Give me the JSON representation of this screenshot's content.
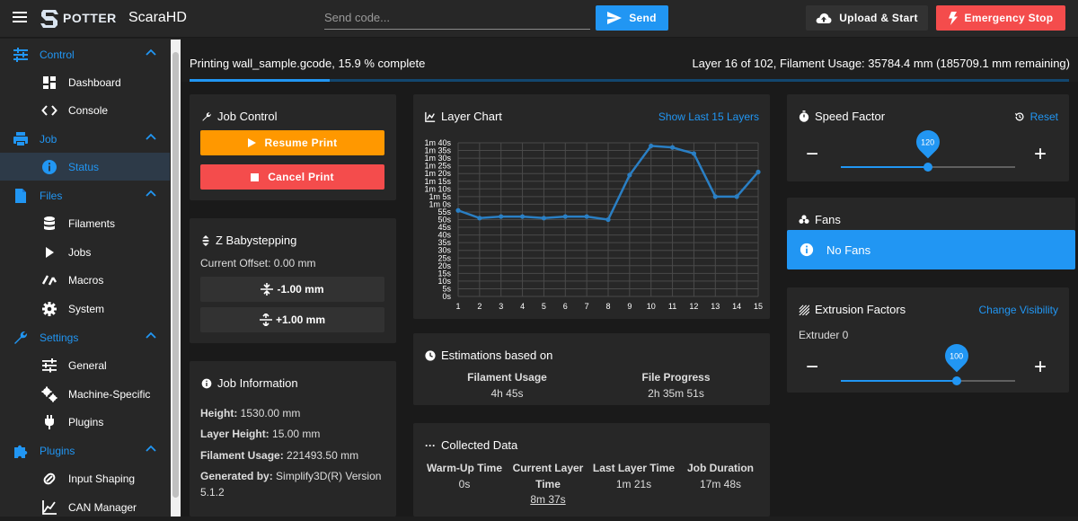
{
  "header": {
    "logo_text": "POTTER",
    "brand": "ScaraHD",
    "send_placeholder": "Send code...",
    "send_label": "Send",
    "upload_label": "Upload & Start",
    "estop_label": "Emergency Stop"
  },
  "sidebar": {
    "sections": [
      {
        "label": "Control",
        "icon": "sliders-icon",
        "items": [
          {
            "label": "Dashboard",
            "icon": "dashboard-icon"
          },
          {
            "label": "Console",
            "icon": "code-icon"
          }
        ]
      },
      {
        "label": "Job",
        "icon": "printer-icon",
        "items": [
          {
            "label": "Status",
            "icon": "info-icon",
            "active": true
          }
        ]
      },
      {
        "label": "Files",
        "icon": "file-icon",
        "items": [
          {
            "label": "Filaments",
            "icon": "database-icon"
          },
          {
            "label": "Jobs",
            "icon": "play-icon"
          },
          {
            "label": "Macros",
            "icon": "macro-icon"
          },
          {
            "label": "System",
            "icon": "gear-icon"
          }
        ]
      },
      {
        "label": "Settings",
        "icon": "wrench-icon",
        "items": [
          {
            "label": "General",
            "icon": "tune-icon"
          },
          {
            "label": "Machine-Specific",
            "icon": "cogs-icon"
          },
          {
            "label": "Plugins",
            "icon": "plug-icon"
          }
        ]
      },
      {
        "label": "Plugins",
        "icon": "puzzle-icon",
        "items": [
          {
            "label": "Input Shaping",
            "icon": "shaping-icon"
          },
          {
            "label": "CAN Manager",
            "icon": "chart-line-icon"
          }
        ]
      }
    ]
  },
  "status": {
    "left": "Printing wall_sample.gcode, 15.9 % complete",
    "right": "Layer 16 of 102, Filament Usage: 35784.4 mm (185709.1 mm remaining)",
    "progress": 0.159
  },
  "job_control": {
    "title": "Job Control",
    "resume": "Resume Print",
    "cancel": "Cancel Print",
    "resume_color": "#ff9800",
    "cancel_color": "#f44c4c"
  },
  "babystep": {
    "title": "Z Babystepping",
    "offset": "Current Offset: 0.00 mm",
    "down": "-1.00 mm",
    "up": "+1.00 mm"
  },
  "job_info": {
    "title": "Job Information",
    "height_k": "Height:",
    "height_v": "1530.00 mm",
    "layer_k": "Layer Height:",
    "layer_v": "15.00 mm",
    "fil_k": "Filament Usage:",
    "fil_v": "221493.50 mm",
    "gen_k": "Generated by:",
    "gen_v1": "Simplify3D(R) Version",
    "gen_v2": "5.1.2"
  },
  "layer_chart": {
    "title": "Layer Chart",
    "link": "Show Last 15 Layers"
  },
  "chart_data": {
    "type": "line",
    "title": "Layer Chart",
    "x": [
      1,
      2,
      3,
      4,
      5,
      6,
      7,
      8,
      9,
      10,
      11,
      12,
      13,
      14,
      15
    ],
    "y_seconds": [
      56,
      51,
      52,
      52,
      51,
      52,
      52,
      50,
      79,
      98,
      97,
      93,
      65,
      65,
      81
    ],
    "ylim": [
      0,
      100
    ],
    "y_tick_labels": [
      "0s",
      "5s",
      "10s",
      "15s",
      "20s",
      "25s",
      "30s",
      "35s",
      "40s",
      "45s",
      "50s",
      "55s",
      "1m 0s",
      "1m 5s",
      "1m 10s",
      "1m 15s",
      "1m 20s",
      "1m 25s",
      "1m 30s",
      "1m 35s",
      "1m 40s"
    ],
    "grid": true,
    "line_color": "#2a7fc4"
  },
  "estimations": {
    "title": "Estimations based on",
    "fil_k": "Filament Usage",
    "fil_v": "4h 45s",
    "file_k": "File Progress",
    "file_v": "2h 35m 51s"
  },
  "collected": {
    "title": "Collected Data",
    "warm_k": "Warm-Up Time",
    "warm_v": "0s",
    "cur_k1": "Current Layer",
    "cur_k2": "Time",
    "cur_v": "8m 37s",
    "last_k": "Last Layer Time",
    "last_v": "1m 21s",
    "dur_k": "Job Duration",
    "dur_v": "17m 48s"
  },
  "speed": {
    "title": "Speed Factor",
    "reset": "Reset",
    "value": "120",
    "fraction": 0.5,
    "minus": "−",
    "plus": "+"
  },
  "fans": {
    "title": "Fans",
    "message": "No Fans"
  },
  "extrusion": {
    "title": "Extrusion Factors",
    "link": "Change Visibility",
    "extruder": "Extruder 0",
    "value": "100",
    "fraction": 0.667,
    "minus": "−",
    "plus": "+"
  }
}
